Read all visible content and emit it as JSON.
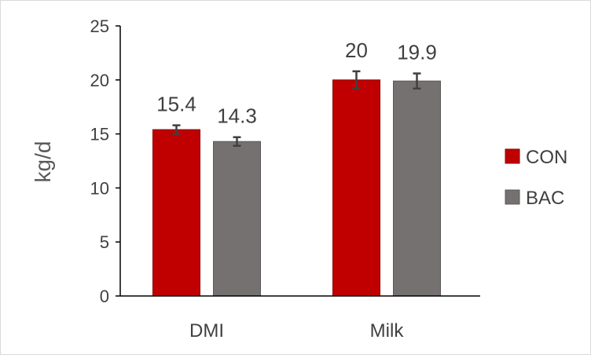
{
  "chart_data": {
    "type": "bar",
    "categories": [
      "DMI",
      "Milk"
    ],
    "series": [
      {
        "name": "CON",
        "values": [
          15.4,
          20
        ],
        "error": [
          0.4,
          0.8
        ],
        "color": "#c00000"
      },
      {
        "name": "BAC",
        "values": [
          14.3,
          19.9
        ],
        "error": [
          0.4,
          0.7
        ],
        "color": "#767171"
      }
    ],
    "data_labels": [
      [
        "15.4",
        "20"
      ],
      [
        "14.3",
        "19.9"
      ]
    ],
    "title": "",
    "xlabel": "",
    "ylabel": "kg/d",
    "ylim": [
      0,
      25
    ],
    "yticks": [
      "0",
      "5",
      "10",
      "15",
      "20",
      "25"
    ],
    "grid": false,
    "legend_position": "right"
  }
}
